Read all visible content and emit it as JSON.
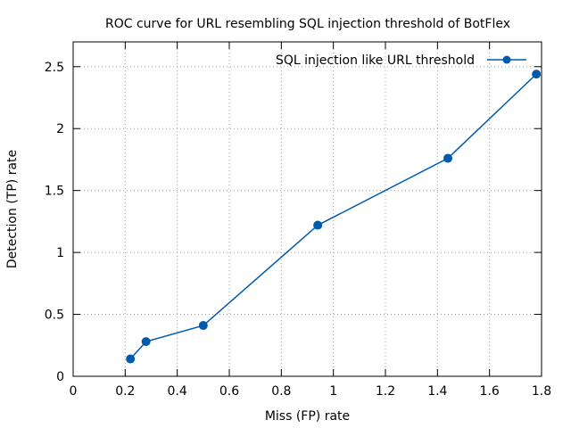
{
  "chart_data": {
    "type": "line",
    "title": "ROC curve for URL resembling SQL injection threshold of BotFlex",
    "xlabel": "Miss (FP) rate",
    "ylabel": "Detection (TP) rate",
    "xlim": [
      0,
      1.8
    ],
    "ylim": [
      0,
      2.7
    ],
    "xticks": [
      "0",
      "0.2",
      "0.4",
      "0.6",
      "0.8",
      "1",
      "1.2",
      "1.4",
      "1.6",
      "1.8"
    ],
    "xtick_values": [
      0,
      0.2,
      0.4,
      0.6,
      0.8,
      1,
      1.2,
      1.4,
      1.6,
      1.8
    ],
    "yticks": [
      "0",
      "0.5",
      "1",
      "1.5",
      "2",
      "2.5"
    ],
    "ytick_values": [
      0,
      0.5,
      1,
      1.5,
      2,
      2.5
    ],
    "grid": true,
    "legend_position": "top-right",
    "series": [
      {
        "name": "SQL injection like URL threshold",
        "color": "#005aac",
        "x": [
          0.22,
          0.28,
          0.5,
          0.94,
          1.44,
          1.78
        ],
        "y": [
          0.14,
          0.28,
          0.41,
          1.22,
          1.76,
          2.44
        ]
      }
    ]
  }
}
